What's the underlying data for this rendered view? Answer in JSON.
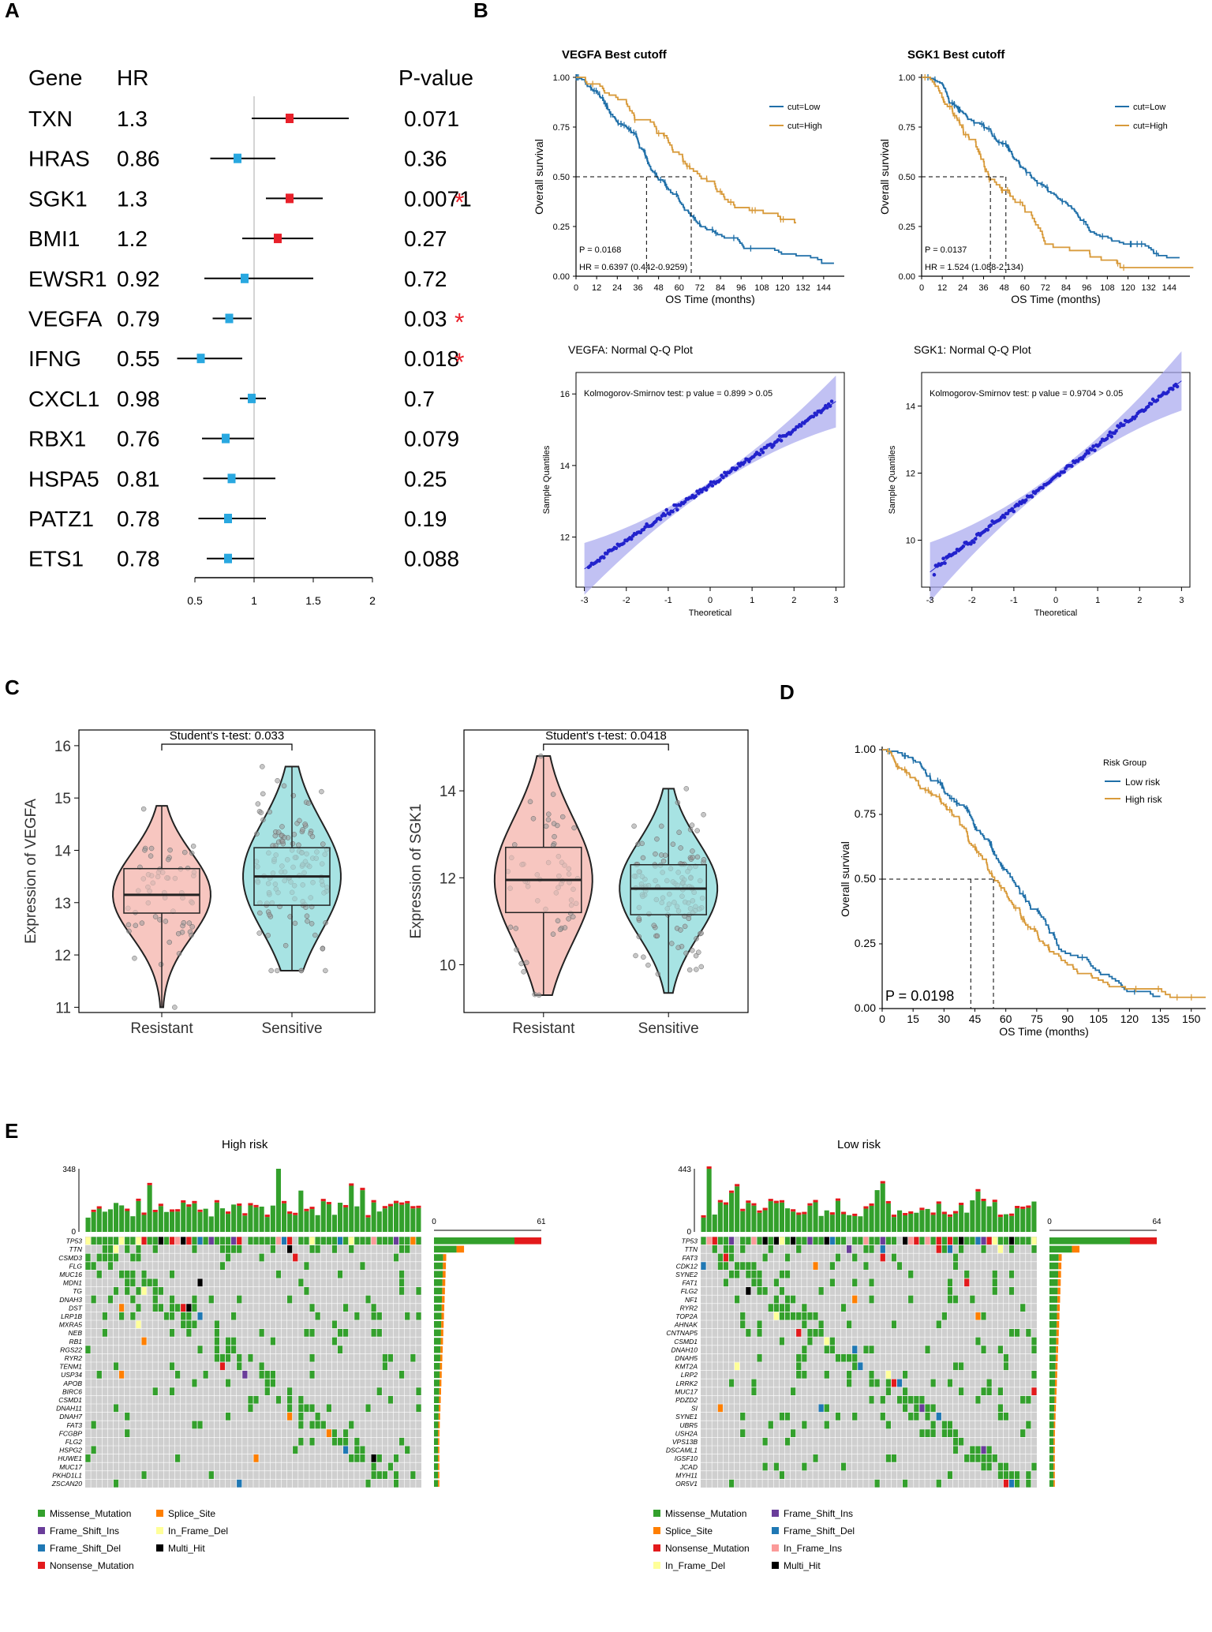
{
  "panels": {
    "a": "A",
    "b": "B",
    "c": "C",
    "d": "D",
    "e": "E"
  },
  "forest": {
    "headers": {
      "gene": "Gene",
      "hr": "HR",
      "p": "P-value"
    },
    "rows": [
      {
        "gene": "TXN",
        "hr": "1.3",
        "p": "0.071",
        "est": 1.3,
        "lo": 0.98,
        "hi": 1.8,
        "sig": false,
        "color": "#e8202a"
      },
      {
        "gene": "HRAS",
        "hr": "0.86",
        "p": "0.36",
        "est": 0.86,
        "lo": 0.63,
        "hi": 1.18,
        "sig": false,
        "color": "#29a8e0"
      },
      {
        "gene": "SGK1",
        "hr": "1.3",
        "p": "0.0071",
        "est": 1.3,
        "lo": 1.1,
        "hi": 1.58,
        "sig": true,
        "color": "#e8202a"
      },
      {
        "gene": "BMI1",
        "hr": "1.2",
        "p": "0.27",
        "est": 1.2,
        "lo": 0.9,
        "hi": 1.5,
        "sig": false,
        "color": "#e8202a"
      },
      {
        "gene": "EWSR1",
        "hr": "0.92",
        "p": "0.72",
        "est": 0.92,
        "lo": 0.58,
        "hi": 1.5,
        "sig": false,
        "color": "#29a8e0"
      },
      {
        "gene": "VEGFA",
        "hr": "0.79",
        "p": "0.03",
        "est": 0.79,
        "lo": 0.65,
        "hi": 0.98,
        "sig": true,
        "color": "#29a8e0"
      },
      {
        "gene": "IFNG",
        "hr": "0.55",
        "p": "0.018",
        "est": 0.55,
        "lo": 0.35,
        "hi": 0.9,
        "sig": true,
        "color": "#29a8e0"
      },
      {
        "gene": "CXCL1",
        "hr": "0.98",
        "p": "0.7",
        "est": 0.98,
        "lo": 0.88,
        "hi": 1.1,
        "sig": false,
        "color": "#29a8e0"
      },
      {
        "gene": "RBX1",
        "hr": "0.76",
        "p": "0.079",
        "est": 0.76,
        "lo": 0.56,
        "hi": 1.0,
        "sig": false,
        "color": "#29a8e0"
      },
      {
        "gene": "HSPA5",
        "hr": "0.81",
        "p": "0.25",
        "est": 0.81,
        "lo": 0.57,
        "hi": 1.18,
        "sig": false,
        "color": "#29a8e0"
      },
      {
        "gene": "PATZ1",
        "hr": "0.78",
        "p": "0.19",
        "est": 0.78,
        "lo": 0.53,
        "hi": 1.1,
        "sig": false,
        "color": "#29a8e0"
      },
      {
        "gene": "ETS1",
        "hr": "0.78",
        "p": "0.088",
        "est": 0.78,
        "lo": 0.6,
        "hi": 1.0,
        "sig": false,
        "color": "#29a8e0"
      }
    ],
    "axis_ticks": [
      "0.5",
      "1",
      "1.5",
      "2"
    ],
    "star": "*"
  },
  "km_b": [
    {
      "title": "VEGFA Best cutoff",
      "legend": [
        "cut=Low",
        "cut=High"
      ],
      "p": "P = 0.0168",
      "hr": "HR = 0.6397 (0.442-0.9259)",
      "xlabel": "OS Time (months)",
      "ylabel": "Overall survival",
      "x_ticks": [
        "0",
        "12",
        "24",
        "36",
        "48",
        "60",
        "72",
        "84",
        "96",
        "108",
        "120",
        "132",
        "144"
      ],
      "y_ticks": [
        "0.00",
        "0.25",
        "0.50",
        "0.75",
        "1.00"
      ],
      "median_low": 41,
      "median_high": 67
    },
    {
      "title": "SGK1 Best cutoff",
      "legend": [
        "cut=Low",
        "cut=High"
      ],
      "p": "P = 0.0137",
      "hr": "HR = 1.524 (1.088-2.134)",
      "xlabel": "OS Time (months)",
      "ylabel": "Overall survival",
      "x_ticks": [
        "0",
        "12",
        "24",
        "36",
        "48",
        "60",
        "72",
        "84",
        "96",
        "108",
        "120",
        "132",
        "144"
      ],
      "y_ticks": [
        "0.00",
        "0.25",
        "0.50",
        "0.75",
        "1.00"
      ],
      "median_low": 49,
      "median_high": 40
    }
  ],
  "qq": [
    {
      "title": "VEGFA: Normal Q-Q Plot",
      "ks": "Kolmogorov-Smirnov test: p value = 0.899  > 0.05",
      "xlabel": "Theoretical",
      "ylabel": "Sample Quantiles",
      "x_ticks": [
        "-3",
        "-2",
        "-1",
        "0",
        "1",
        "2",
        "3"
      ],
      "y_ticks": [
        "12",
        "14",
        "16"
      ],
      "ymin": 10.6,
      "ymax": 16.6,
      "mean": 13.45,
      "sd": 0.78
    },
    {
      "title": "SGK1: Normal Q-Q Plot",
      "ks": "Kolmogorov-Smirnov test: p value = 0.9704  > 0.05",
      "xlabel": "Theoretical",
      "ylabel": "Sample Quantiles",
      "x_ticks": [
        "-3",
        "-2",
        "-1",
        "0",
        "1",
        "2",
        "3"
      ],
      "y_ticks": [
        "10",
        "12",
        "14"
      ],
      "ymin": 8.6,
      "ymax": 15.0,
      "mean": 11.9,
      "sd": 0.95
    }
  ],
  "violins": [
    {
      "test": "Student's t-test: 0.033",
      "ylabel": "Expression of VEGFA",
      "groups": [
        "Resistant",
        "Sensitive"
      ],
      "y_ticks": [
        "11",
        "12",
        "13",
        "14",
        "15",
        "16"
      ],
      "ymin": 10.9,
      "ymax": 16.3,
      "boxes": [
        {
          "q1": 12.8,
          "med": 13.15,
          "q3": 13.65,
          "lo": 11.0,
          "hi": 14.85
        },
        {
          "q1": 12.95,
          "med": 13.5,
          "q3": 14.05,
          "lo": 11.7,
          "hi": 15.6
        }
      ]
    },
    {
      "test": "Student's t-test: 0.0418",
      "ylabel": "Expression of SGK1",
      "groups": [
        "Resistant",
        "Sensitive"
      ],
      "y_ticks": [
        "10",
        "12",
        "14"
      ],
      "ymin": 8.9,
      "ymax": 15.4,
      "boxes": [
        {
          "q1": 11.2,
          "med": 11.95,
          "q3": 12.7,
          "lo": 9.3,
          "hi": 14.8
        },
        {
          "q1": 11.15,
          "med": 11.75,
          "q3": 12.3,
          "lo": 9.35,
          "hi": 14.05
        }
      ]
    }
  ],
  "km_d": {
    "legend_title": "Risk Group",
    "legend": [
      "Low risk",
      "High risk"
    ],
    "p": "P = 0.0198",
    "xlabel": "OS Time (months)",
    "ylabel": "Overall survival",
    "x_ticks": [
      "0",
      "15",
      "30",
      "45",
      "60",
      "75",
      "90",
      "105",
      "120",
      "135",
      "150"
    ],
    "y_ticks": [
      "0.00",
      "0.25",
      "0.50",
      "0.75",
      "1.00"
    ],
    "median_low": 54,
    "median_high": 43
  },
  "oncoplot": [
    {
      "title": "High risk",
      "max_count": "348",
      "zero": "0",
      "bar_zero": "0",
      "bar_max": "61",
      "genes": [
        "TP53",
        "TTN",
        "CSMD3",
        "FLG",
        "MUC16",
        "MDN1",
        "TG",
        "DNAH3",
        "DST",
        "LRP1B",
        "MXRA5",
        "NEB",
        "RB1",
        "RGS22",
        "RYR2",
        "TENM1",
        "USP34",
        "APOB",
        "BIRC6",
        "CSMD1",
        "DNAH11",
        "DNAH7",
        "FAT3",
        "FCGBP",
        "FLG2",
        "HSPG2",
        "HUWE1",
        "MUC17",
        "PKHD1L1",
        "ZSCAN20"
      ],
      "legend": [
        "Missense_Mutation",
        "Splice_Site",
        "Frame_Shift_Ins",
        "In_Frame_Del",
        "Frame_Shift_Del",
        "Multi_Hit",
        "Nonsense_Mutation"
      ]
    },
    {
      "title": "Low risk",
      "max_count": "443",
      "zero": "0",
      "bar_zero": "0",
      "bar_max": "64",
      "genes": [
        "TP53",
        "TTN",
        "FAT3",
        "CDK12",
        "SYNE2",
        "FAT1",
        "FLG2",
        "NF1",
        "RYR2",
        "TOP2A",
        "AHNAK",
        "CNTNAP5",
        "CSMD1",
        "DNAH10",
        "DNAH5",
        "KMT2A",
        "LRP2",
        "LRRK2",
        "MUC17",
        "PDZD2",
        "SI",
        "SYNE1",
        "UBR5",
        "USH2A",
        "VPS13B",
        "DSCAML1",
        "IGSF10",
        "JCAD",
        "MYH11",
        "OR5V1"
      ],
      "legend": [
        "Missense_Mutation",
        "Frame_Shift_Ins",
        "Splice_Site",
        "Frame_Shift_Del",
        "Nonsense_Mutation",
        "In_Frame_Ins",
        "In_Frame_Del",
        "Multi_Hit"
      ]
    }
  ],
  "colors": {
    "blue": "#1f6fa8",
    "orange": "#d89a3a",
    "red": "#e8202a",
    "cyan": "#29a8e0",
    "qq_fill": "#a6a6ee",
    "qq_pt": "#2222cc",
    "violin_a": "#f7c6c0",
    "violin_b": "#a7e3e3",
    "grey": "#cccccc",
    "mut": {
      "Missense_Mutation": "#33a02c",
      "Splice_Site": "#ff7f00",
      "Frame_Shift_Ins": "#6a3d9a",
      "In_Frame_Del": "#ffff99",
      "Frame_Shift_Del": "#1f78b4",
      "Multi_Hit": "#000000",
      "Nonsense_Mutation": "#e31a1c",
      "In_Frame_Ins": "#fb9a99"
    }
  }
}
